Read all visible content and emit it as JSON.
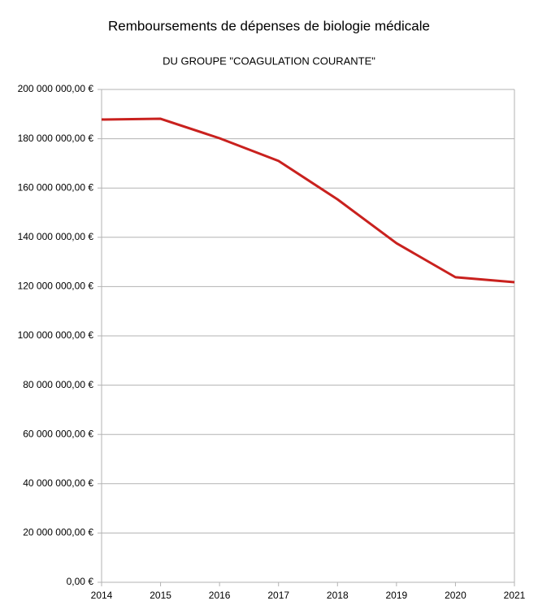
{
  "chart_data": {
    "type": "line",
    "title": "Remboursements de dépenses de biologie médicale",
    "subtitle": "DU GROUPE \"COAGULATION COURANTE\"",
    "x": [
      2014,
      2015,
      2016,
      2017,
      2018,
      2019,
      2020,
      2021
    ],
    "values": [
      187800000,
      188100000,
      180200000,
      171000000,
      155400000,
      137600000,
      123800000,
      121800000
    ],
    "color": "#c9211e",
    "xlim": [
      2014,
      2021
    ],
    "xticks": [
      2014,
      2015,
      2016,
      2017,
      2018,
      2019,
      2020,
      2021
    ],
    "ylim": [
      0,
      200000000
    ],
    "yticks": [
      {
        "value": 0,
        "label": "0,00 €"
      },
      {
        "value": 20000000,
        "label": "20 000 000,00 €"
      },
      {
        "value": 40000000,
        "label": "40 000 000,00 €"
      },
      {
        "value": 60000000,
        "label": "60 000 000,00 €"
      },
      {
        "value": 80000000,
        "label": "80 000 000,00 €"
      },
      {
        "value": 100000000,
        "label": "100 000 000,00 €"
      },
      {
        "value": 120000000,
        "label": "120 000 000,00 €"
      },
      {
        "value": 140000000,
        "label": "140 000 000,00 €"
      },
      {
        "value": 160000000,
        "label": "160 000 000,00 €"
      },
      {
        "value": 180000000,
        "label": "180 000 000,00 €"
      },
      {
        "value": 200000000,
        "label": "200 000 000,00 €"
      }
    ],
    "grid": true
  }
}
